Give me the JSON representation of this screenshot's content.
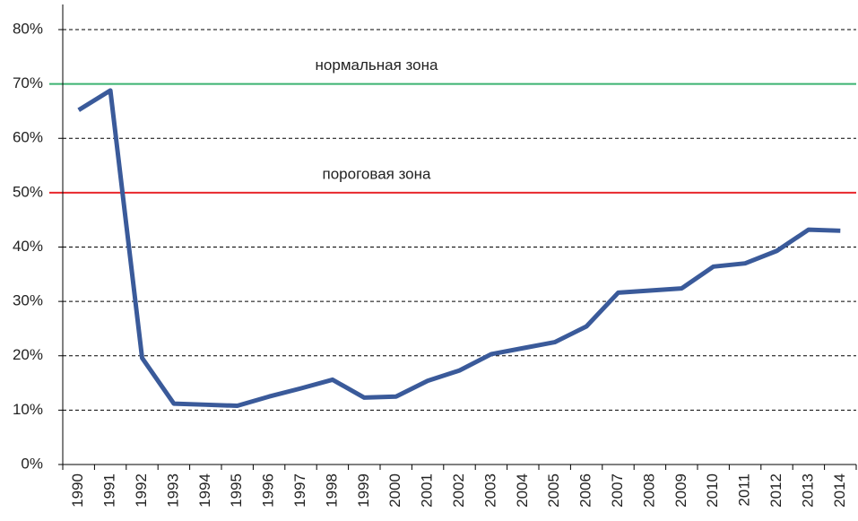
{
  "chart_data": {
    "type": "line",
    "categories": [
      "1990",
      "1991",
      "1992",
      "1993",
      "1994",
      "1995",
      "1996",
      "1997",
      "1998",
      "1999",
      "2000",
      "2001",
      "2002",
      "2003",
      "2004",
      "2005",
      "2006",
      "2007",
      "2008",
      "2009",
      "2010",
      "2011",
      "2012",
      "2013",
      "2014"
    ],
    "values": [
      65.2,
      68.8,
      19.6,
      11.2,
      11.0,
      10.8,
      12.5,
      14.0,
      15.6,
      12.3,
      12.5,
      15.4,
      17.3,
      20.3,
      21.4,
      22.5,
      25.4,
      31.6,
      32.0,
      32.4,
      36.4,
      37.0,
      39.3,
      43.2,
      43.0
    ],
    "color": "#3a5a9a",
    "ylim": [
      0,
      80
    ],
    "yticks": [
      {
        "value": 0,
        "label": "0%"
      },
      {
        "value": 10,
        "label": "10%"
      },
      {
        "value": 20,
        "label": "20%"
      },
      {
        "value": 30,
        "label": "30%"
      },
      {
        "value": 40,
        "label": "40%"
      },
      {
        "value": 50,
        "label": "50%"
      },
      {
        "value": 60,
        "label": "60%"
      },
      {
        "value": 70,
        "label": "70%"
      },
      {
        "value": 80,
        "label": "80%"
      }
    ],
    "grid": true,
    "reference_lines": [
      {
        "value": 70,
        "label": "нормальная зона",
        "color": "#3cb371"
      },
      {
        "value": 50,
        "label": "пороговая зона",
        "color": "#e8262b"
      }
    ]
  }
}
